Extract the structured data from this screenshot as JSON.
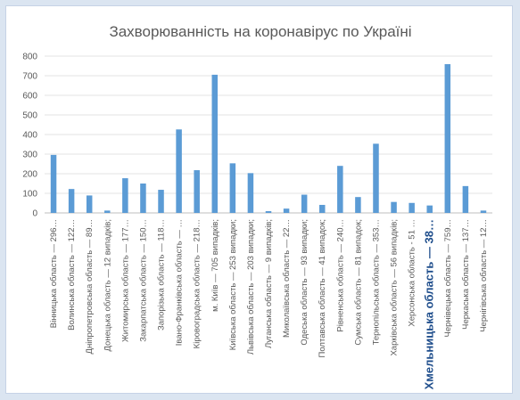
{
  "chart_data": {
    "type": "bar",
    "title": "Захворюванність на коронавірус по Україні",
    "xlabel": "",
    "ylabel": "",
    "ylim": [
      0,
      800
    ],
    "yticks": [
      0,
      100,
      200,
      300,
      400,
      500,
      600,
      700,
      800
    ],
    "grid": true,
    "legend": "none",
    "bar_color": "#5b9bd5",
    "highlight_color": "#1f4e8c",
    "highlight_index": 21,
    "categories": [
      "Вінницька область — 296…",
      "Волинська область — 122…",
      "Дніпропетровська область — 89…",
      "Донецька область — 12 випадків;",
      "Житомирська область — 177…",
      "Закарпатська область — 150…",
      "Запорізька область — 118…",
      "Івано-Франківська область — …",
      "Кіровоградська область — 218…",
      "м. Київ — 705 випадків;",
      "Київська область — 253 випадки;",
      "Львівська область — 203 випадки;",
      "Луганська область — 9 випадків;",
      "Миколаївська область — 22…",
      "Одеська область — 93 випадки;",
      "Полтавська область — 41 випадок;",
      "Рівненська область — 240…",
      "Сумська область — 81 випадок;",
      "Тернопільська область — 353…",
      "Харківська область — 56 випадків;",
      "Херсонська область - 51 …",
      "Хмельницька область — 38…",
      "Чернівецька область — 759…",
      "Черкаська область — 137…",
      "Чернігівська область — 12…"
    ],
    "values": [
      296,
      122,
      89,
      12,
      177,
      150,
      118,
      426,
      218,
      705,
      253,
      203,
      9,
      22,
      93,
      41,
      240,
      81,
      353,
      56,
      51,
      38,
      759,
      137,
      12
    ]
  }
}
